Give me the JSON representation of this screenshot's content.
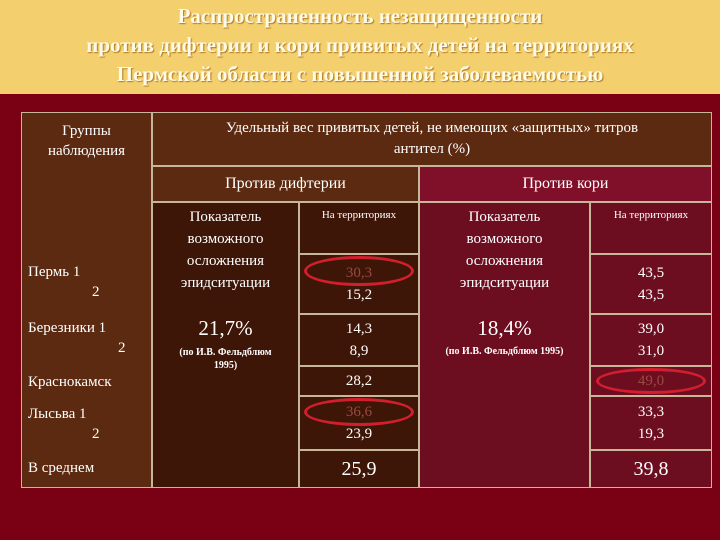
{
  "title": {
    "line1": "Распространенность незащищенности",
    "line2": "против дифтерии  и  кори привитых детей на территориях",
    "line3": "Пермской области с повышенной заболеваемостью"
  },
  "header": {
    "groups_line1": "Группы",
    "groups_line2": "наблюдения",
    "share_line1": "Удельный вес привитых детей, не имеющих «защитных» титров",
    "share_line2": "антител (%)",
    "diphtheria": "Против дифтерии",
    "measles": "Против кори",
    "indicator_line1": "Показатель",
    "indicator_line2": "возможного",
    "indicator_line3": "осложнения",
    "indicator_line4": "эпидситуации",
    "on_territories": "На территориях"
  },
  "rows": [
    {
      "name_line1": "Пермь 1",
      "name_line2": "2",
      "dip_1": "30,3",
      "dip_2": "15,2",
      "mea_1": "43,5",
      "mea_2": "43,5"
    },
    {
      "name_line1": "Березники 1",
      "name_line2": "2",
      "dip_1": "14,3",
      "dip_2": "8,9",
      "mea_1": "39,0",
      "mea_2": "31,0"
    },
    {
      "name_line1": "Краснокамск",
      "name_line2": "",
      "dip_1": "28,2",
      "dip_2": "",
      "mea_1": "49,0",
      "mea_2": ""
    },
    {
      "name_line1": "Лысьва 1",
      "name_line2": "2",
      "dip_1": "36,6",
      "dip_2": "23,9",
      "mea_1": "33,3",
      "mea_2": "19,3"
    },
    {
      "name_line1": "В среднем",
      "name_line2": "",
      "dip_1": "25,9",
      "dip_2": "",
      "mea_1": "39,8",
      "mea_2": ""
    }
  ],
  "indicators": {
    "diphtheria_value": "21,7%",
    "diphtheria_source_line1": "(по И.В. Фельдблюм",
    "diphtheria_source_line2": "1995)",
    "measles_value": "18,4%",
    "measles_source": "(по И.В. Фельдблюм 1995)"
  },
  "colors": {
    "background": "#7a0014",
    "title_band": "#f3cf6e",
    "highlight": "#d21e2d"
  }
}
